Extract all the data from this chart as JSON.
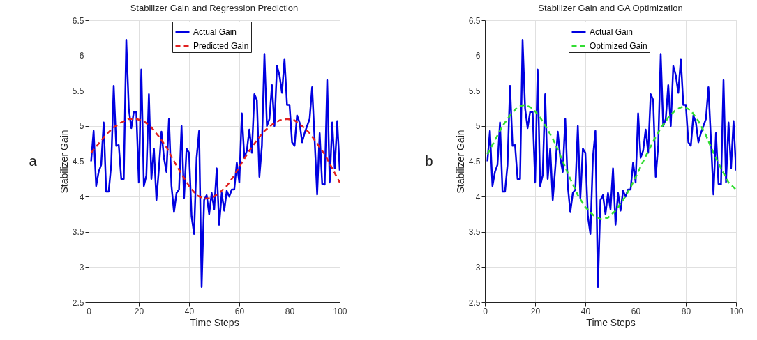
{
  "chart_data": [
    {
      "type": "line",
      "title": "Stabilizer Gain and Regression Prediction",
      "xlabel": "Time Steps",
      "ylabel": "Stabilizer Gain",
      "annotations": [
        "a"
      ],
      "xlim": [
        0,
        100
      ],
      "xticks": [
        0,
        20,
        40,
        60,
        80,
        100
      ],
      "ylim": [
        2.5,
        6.5
      ],
      "yticks": [
        2.5,
        3,
        3.5,
        4,
        4.5,
        5,
        5.5,
        6,
        6.5
      ],
      "grid": true,
      "legend": "top",
      "marker": "none",
      "series": [
        {
          "name": "Actual Gain",
          "color": "#0000e0",
          "line_style": "solid",
          "x": [
            1,
            2,
            3,
            4,
            5,
            6,
            7,
            8,
            9,
            10,
            11,
            12,
            13,
            14,
            15,
            16,
            17,
            18,
            19,
            20,
            21,
            22,
            23,
            24,
            25,
            26,
            27,
            28,
            29,
            30,
            31,
            32,
            33,
            34,
            35,
            36,
            37,
            38,
            39,
            40,
            41,
            42,
            43,
            44,
            45,
            46,
            47,
            48,
            49,
            50,
            51,
            52,
            53,
            54,
            55,
            56,
            57,
            58,
            59,
            60,
            61,
            62,
            63,
            64,
            65,
            66,
            67,
            68,
            69,
            70,
            71,
            72,
            73,
            74,
            75,
            76,
            77,
            78,
            79,
            80,
            81,
            82,
            83,
            84,
            85,
            86,
            87,
            88,
            89,
            90,
            91,
            92,
            93,
            94,
            95,
            96,
            97,
            98,
            99,
            100
          ],
          "values": [
            4.5,
            4.93,
            4.15,
            4.35,
            4.45,
            5.05,
            4.07,
            4.07,
            4.45,
            5.57,
            4.72,
            4.73,
            4.25,
            4.25,
            6.22,
            5.25,
            4.97,
            5.2,
            5.2,
            4.2,
            5.8,
            4.15,
            4.3,
            5.45,
            4.25,
            4.68,
            3.95,
            4.4,
            4.92,
            4.55,
            4.35,
            5.1,
            4.15,
            3.78,
            4.05,
            4.1,
            5.0,
            3.98,
            4.68,
            4.62,
            3.72,
            3.47,
            4.55,
            4.93,
            2.72,
            3.95,
            4.02,
            3.75,
            4.05,
            3.82,
            4.4,
            3.6,
            4.05,
            3.8,
            4.08,
            4.0,
            4.1,
            4.1,
            4.48,
            4.2,
            5.18,
            4.55,
            4.65,
            4.95,
            4.62,
            5.45,
            5.37,
            4.28,
            4.72,
            6.02,
            5.0,
            5.1,
            5.58,
            5.0,
            5.85,
            5.72,
            5.47,
            5.95,
            5.3,
            5.3,
            4.77,
            4.72,
            5.15,
            5.05,
            4.77,
            4.9,
            5.0,
            5.1,
            5.55,
            4.8,
            4.03,
            4.9,
            4.18,
            4.17,
            5.65,
            4.2,
            5.05,
            4.4,
            5.07,
            4.37
          ]
        },
        {
          "name": "Predicted Gain",
          "color": "#e02020",
          "line_style": "dashed",
          "x": [
            1,
            4,
            7,
            10,
            13,
            16,
            19,
            22,
            25,
            28,
            31,
            34,
            37,
            40,
            43,
            46,
            49,
            52,
            55,
            58,
            61,
            64,
            67,
            70,
            73,
            76,
            79,
            82,
            85,
            88,
            91,
            94,
            97,
            100
          ],
          "values": [
            4.62,
            4.75,
            4.88,
            4.98,
            5.05,
            5.1,
            5.1,
            5.07,
            4.98,
            4.85,
            4.7,
            4.5,
            4.32,
            4.15,
            4.02,
            3.97,
            3.98,
            4.05,
            4.15,
            4.3,
            4.48,
            4.65,
            4.8,
            4.93,
            5.02,
            5.08,
            5.1,
            5.08,
            5.0,
            4.9,
            4.75,
            4.6,
            4.4,
            4.2
          ]
        }
      ]
    },
    {
      "type": "line",
      "title": "Stabilizer Gain and GA Optimization",
      "xlabel": "Time Steps",
      "ylabel": "Stabilizer Gain",
      "annotations": [
        "b"
      ],
      "xlim": [
        0,
        100
      ],
      "xticks": [
        0,
        20,
        40,
        60,
        80,
        100
      ],
      "ylim": [
        2.5,
        6.5
      ],
      "yticks": [
        2.5,
        3,
        3.5,
        4,
        4.5,
        5,
        5.5,
        6,
        6.5
      ],
      "grid": true,
      "legend": "top",
      "marker": "none",
      "series": [
        {
          "name": "Actual Gain",
          "color": "#0000e0",
          "line_style": "solid",
          "x": [
            1,
            2,
            3,
            4,
            5,
            6,
            7,
            8,
            9,
            10,
            11,
            12,
            13,
            14,
            15,
            16,
            17,
            18,
            19,
            20,
            21,
            22,
            23,
            24,
            25,
            26,
            27,
            28,
            29,
            30,
            31,
            32,
            33,
            34,
            35,
            36,
            37,
            38,
            39,
            40,
            41,
            42,
            43,
            44,
            45,
            46,
            47,
            48,
            49,
            50,
            51,
            52,
            53,
            54,
            55,
            56,
            57,
            58,
            59,
            60,
            61,
            62,
            63,
            64,
            65,
            66,
            67,
            68,
            69,
            70,
            71,
            72,
            73,
            74,
            75,
            76,
            77,
            78,
            79,
            80,
            81,
            82,
            83,
            84,
            85,
            86,
            87,
            88,
            89,
            90,
            91,
            92,
            93,
            94,
            95,
            96,
            97,
            98,
            99,
            100
          ],
          "values": [
            4.5,
            4.93,
            4.15,
            4.35,
            4.45,
            5.05,
            4.07,
            4.07,
            4.45,
            5.57,
            4.72,
            4.73,
            4.25,
            4.25,
            6.22,
            5.25,
            4.97,
            5.2,
            5.2,
            4.2,
            5.8,
            4.15,
            4.3,
            5.45,
            4.25,
            4.68,
            3.95,
            4.4,
            4.92,
            4.55,
            4.35,
            5.1,
            4.15,
            3.78,
            4.05,
            4.1,
            5.0,
            3.98,
            4.68,
            4.62,
            3.72,
            3.47,
            4.55,
            4.93,
            2.72,
            3.95,
            4.02,
            3.75,
            4.05,
            3.82,
            4.4,
            3.6,
            4.05,
            3.8,
            4.08,
            4.0,
            4.1,
            4.1,
            4.48,
            4.2,
            5.18,
            4.55,
            4.65,
            4.95,
            4.62,
            5.45,
            5.37,
            4.28,
            4.72,
            6.02,
            5.0,
            5.1,
            5.58,
            5.0,
            5.85,
            5.72,
            5.47,
            5.95,
            5.3,
            5.3,
            4.77,
            4.72,
            5.15,
            5.05,
            4.77,
            4.9,
            5.0,
            5.1,
            5.55,
            4.8,
            4.03,
            4.9,
            4.18,
            4.17,
            5.65,
            4.2,
            5.05,
            4.4,
            5.07,
            4.37
          ]
        },
        {
          "name": "Optimized Gain",
          "color": "#33dd33",
          "line_style": "dashed",
          "x": [
            1,
            4,
            7,
            10,
            13,
            16,
            19,
            22,
            25,
            28,
            31,
            34,
            37,
            40,
            43,
            46,
            49,
            52,
            55,
            58,
            61,
            64,
            67,
            70,
            73,
            76,
            79,
            82,
            85,
            88,
            91,
            94,
            97,
            100
          ],
          "values": [
            4.6,
            4.8,
            5.0,
            5.15,
            5.27,
            5.3,
            5.25,
            5.12,
            4.95,
            4.75,
            4.5,
            4.25,
            4.02,
            3.85,
            3.74,
            3.68,
            3.7,
            3.8,
            3.95,
            4.13,
            4.35,
            4.57,
            4.78,
            4.97,
            5.12,
            5.23,
            5.28,
            5.22,
            5.07,
            4.87,
            4.62,
            4.4,
            4.2,
            4.1
          ]
        }
      ]
    }
  ]
}
